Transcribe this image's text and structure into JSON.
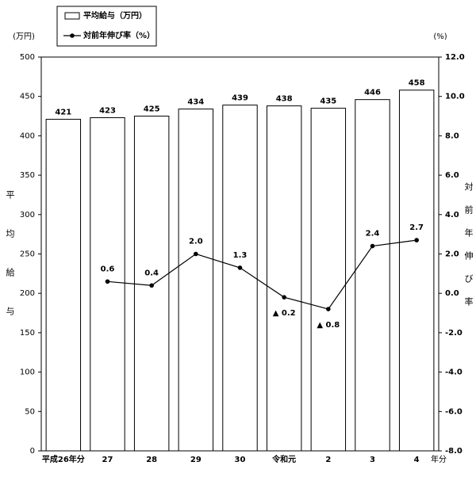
{
  "chart_data": {
    "type": "bar",
    "categories": [
      "平成26年分",
      "27",
      "28",
      "29",
      "30",
      "令和元",
      "2",
      "3",
      "4"
    ],
    "xlabel": "年分",
    "ylabel": "平均給与",
    "yunit": "(万円)",
    "y2label": "対前年伸び率",
    "y2unit": "(%)",
    "series": [
      {
        "name": "平均給与（万円）",
        "type": "bar",
        "axis": "y",
        "color": "#ffffff",
        "values": [
          421,
          423,
          425,
          434,
          439,
          438,
          435,
          446,
          458
        ]
      },
      {
        "name": "対前年伸び率（%）",
        "type": "line",
        "axis": "y2",
        "color": "#000000",
        "values": [
          null,
          0.6,
          0.4,
          2.0,
          1.3,
          -0.2,
          -0.8,
          2.4,
          2.7
        ],
        "value_labels": [
          null,
          "0.6",
          "0.4",
          "2.0",
          "1.3",
          "▲ 0.2",
          "▲ 0.8",
          "2.4",
          "2.7"
        ]
      }
    ],
    "ylim": [
      0,
      500
    ],
    "yticks": [
      0,
      50,
      100,
      150,
      200,
      250,
      300,
      350,
      400,
      450,
      500
    ],
    "y2lim": [
      -8,
      12
    ],
    "y2ticks": [
      {
        "value": -8,
        "label": "-8.0"
      },
      {
        "value": -6,
        "label": "-6.0"
      },
      {
        "value": -4,
        "label": "-4.0"
      },
      {
        "value": -2,
        "label": "-2.0"
      },
      {
        "value": 0,
        "label": "0.0"
      },
      {
        "value": 2,
        "label": "2.0"
      },
      {
        "value": 4,
        "label": "4.0"
      },
      {
        "value": 6,
        "label": "6.0"
      },
      {
        "value": 8,
        "label": "8.0"
      },
      {
        "value": 10,
        "label": "10.0"
      },
      {
        "value": 12,
        "label": "12.0"
      }
    ],
    "grid": false
  }
}
